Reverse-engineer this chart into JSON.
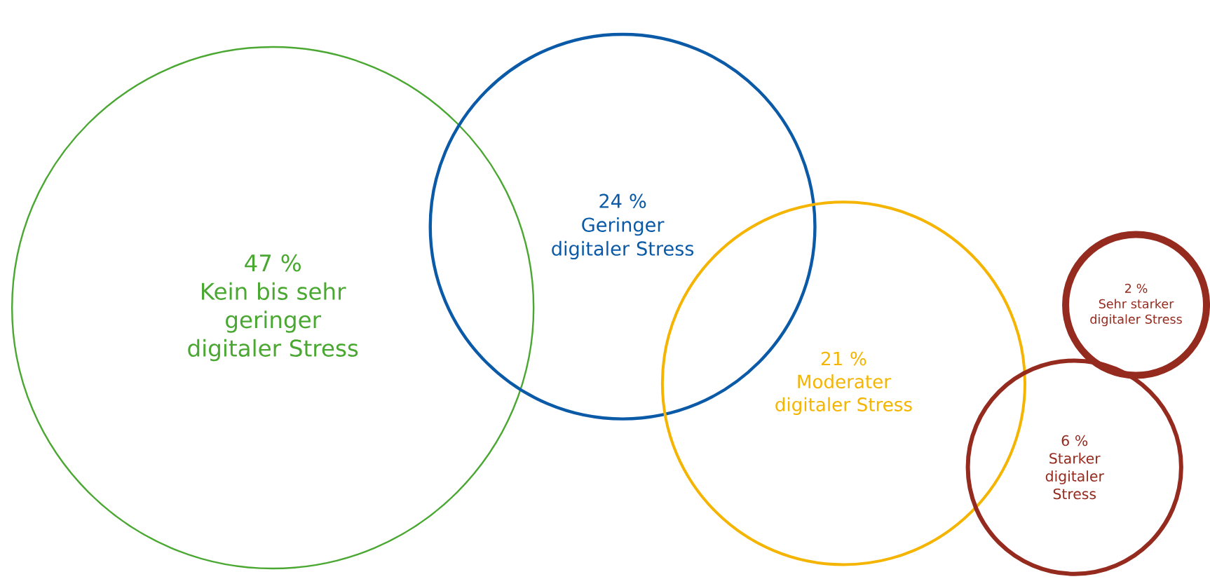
{
  "chart_data": {
    "type": "other",
    "categories": [
      "Kein bis sehr geringer digitaler Stress",
      "Geringer digitaler Stress",
      "Moderater digitaler Stress",
      "Starker digitaler Stress",
      "Sehr starker digitaler Stress"
    ],
    "values": [
      47,
      24,
      21,
      6,
      2
    ],
    "value_labels": [
      "47 %",
      "24 %",
      "21 %",
      "6 %",
      "2 %"
    ],
    "colors": [
      "#4aa832",
      "#0a5aa8",
      "#f5b400",
      "#952a1e",
      "#952a1e"
    ]
  }
}
